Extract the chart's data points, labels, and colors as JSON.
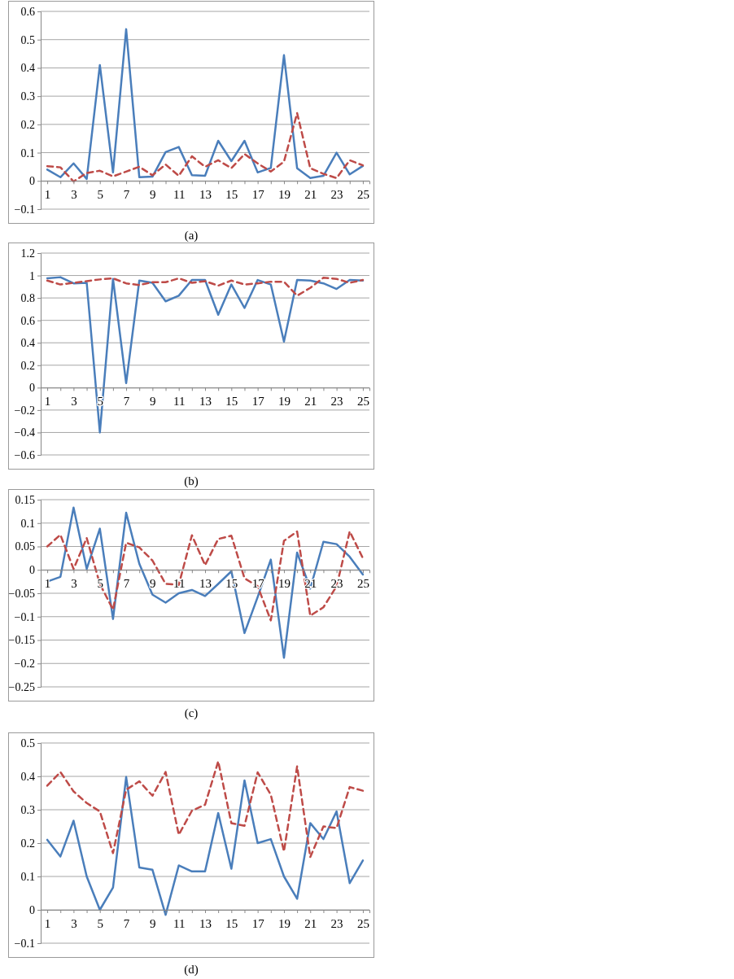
{
  "chart_data": [
    {
      "type": "line",
      "x": [
        1,
        2,
        3,
        4,
        5,
        6,
        7,
        8,
        9,
        10,
        11,
        12,
        13,
        14,
        15,
        16,
        17,
        18,
        19,
        20,
        21,
        22,
        23,
        24,
        25
      ],
      "xlim": [
        0.5,
        25.5
      ],
      "xticks": [
        1,
        {
          "value": 2,
          "label": null
        },
        3,
        {
          "value": 4,
          "label": null
        },
        5,
        {
          "value": 6,
          "label": null
        },
        7,
        {
          "value": 8,
          "label": null
        },
        9,
        {
          "value": 10,
          "label": null
        },
        11,
        {
          "value": 12,
          "label": null
        },
        13,
        {
          "value": 14,
          "label": null
        },
        15,
        {
          "value": 16,
          "label": null
        },
        17,
        {
          "value": 18,
          "label": null
        },
        19,
        {
          "value": 20,
          "label": null
        },
        21,
        {
          "value": 22,
          "label": null
        },
        23,
        {
          "value": 24,
          "label": null
        },
        25
      ],
      "ylim": [
        -0.1,
        0.6
      ],
      "yticks": [
        -0.1,
        0,
        0.1,
        0.2,
        0.3,
        0.4,
        0.5,
        0.6
      ],
      "grid": "y",
      "annotations": [
        "(a)"
      ],
      "series": [
        {
          "color": "#4a7ebb",
          "line_style": "solid",
          "values": [
            0.04,
            0.013,
            0.062,
            0.007,
            0.41,
            0.03,
            0.537,
            0.013,
            0.015,
            0.102,
            0.12,
            0.02,
            0.018,
            0.142,
            0.07,
            0.142,
            0.03,
            0.046,
            0.445,
            0.045,
            0.01,
            0.018,
            0.1,
            0.023,
            0.053
          ]
        },
        {
          "color": "#be4b48",
          "line_style": "dashed",
          "values": [
            0.052,
            0.048,
            -0.002,
            0.028,
            0.036,
            0.016,
            0.033,
            0.05,
            0.02,
            0.058,
            0.018,
            0.087,
            0.05,
            0.073,
            0.045,
            0.095,
            0.062,
            0.033,
            0.068,
            0.24,
            0.045,
            0.025,
            0.01,
            0.073,
            0.055
          ]
        }
      ]
    },
    {
      "type": "line",
      "x": [
        1,
        2,
        3,
        4,
        5,
        6,
        7,
        8,
        9,
        10,
        11,
        12,
        13,
        14,
        15,
        16,
        17,
        18,
        19,
        20,
        21,
        22,
        23,
        24,
        25
      ],
      "xlim": [
        0.5,
        25.5
      ],
      "xticks": [
        1,
        {
          "value": 2,
          "label": null
        },
        3,
        {
          "value": 4,
          "label": null
        },
        5,
        {
          "value": 6,
          "label": null
        },
        7,
        {
          "value": 8,
          "label": null
        },
        9,
        {
          "value": 10,
          "label": null
        },
        11,
        {
          "value": 12,
          "label": null
        },
        13,
        {
          "value": 14,
          "label": null
        },
        15,
        {
          "value": 16,
          "label": null
        },
        17,
        {
          "value": 18,
          "label": null
        },
        19,
        {
          "value": 20,
          "label": null
        },
        21,
        {
          "value": 22,
          "label": null
        },
        23,
        {
          "value": 24,
          "label": null
        },
        25
      ],
      "ylim": [
        -0.6,
        1.2
      ],
      "yticks": [
        -0.6,
        -0.4,
        -0.2,
        0,
        0.2,
        0.4,
        0.6,
        0.8,
        1,
        1.2
      ],
      "grid": "y",
      "annotations": [
        "(b)"
      ],
      "series": [
        {
          "color": "#4a7ebb",
          "line_style": "solid",
          "values": [
            0.975,
            0.985,
            0.93,
            0.935,
            -0.4,
            0.97,
            0.04,
            0.955,
            0.935,
            0.77,
            0.82,
            0.96,
            0.96,
            0.65,
            0.92,
            0.71,
            0.96,
            0.92,
            0.41,
            0.96,
            0.955,
            0.93,
            0.88,
            0.96,
            0.955
          ]
        },
        {
          "color": "#be4b48",
          "line_style": "dashed",
          "values": [
            0.955,
            0.92,
            0.935,
            0.95,
            0.965,
            0.975,
            0.93,
            0.915,
            0.94,
            0.94,
            0.975,
            0.935,
            0.95,
            0.91,
            0.955,
            0.92,
            0.93,
            0.945,
            0.945,
            0.82,
            0.89,
            0.98,
            0.97,
            0.935,
            0.96
          ]
        }
      ]
    },
    {
      "type": "line",
      "x": [
        1,
        2,
        3,
        4,
        5,
        6,
        7,
        8,
        9,
        10,
        11,
        12,
        13,
        14,
        15,
        16,
        17,
        18,
        19,
        20,
        21,
        22,
        23,
        24,
        25
      ],
      "xlim": [
        0.5,
        25.5
      ],
      "xticks": [
        1,
        {
          "value": 2,
          "label": null
        },
        3,
        {
          "value": 4,
          "label": null
        },
        5,
        {
          "value": 6,
          "label": null
        },
        7,
        {
          "value": 8,
          "label": null
        },
        9,
        {
          "value": 10,
          "label": null
        },
        11,
        {
          "value": 12,
          "label": null
        },
        13,
        {
          "value": 14,
          "label": null
        },
        15,
        {
          "value": 16,
          "label": null
        },
        17,
        {
          "value": 18,
          "label": null
        },
        19,
        {
          "value": 20,
          "label": null
        },
        21,
        {
          "value": 22,
          "label": null
        },
        23,
        {
          "value": 24,
          "label": null
        },
        25
      ],
      "ylim": [
        -0.25,
        0.15
      ],
      "yticks": [
        -0.25,
        -0.2,
        -0.15,
        -0.1,
        -0.05,
        0,
        0.05,
        0.1,
        0.15
      ],
      "grid": "y",
      "annotations": [
        "(c)"
      ],
      "series": [
        {
          "color": "#4a7ebb",
          "line_style": "solid",
          "values": [
            -0.025,
            -0.015,
            0.133,
            0.002,
            0.088,
            -0.105,
            0.122,
            0.013,
            -0.053,
            -0.07,
            -0.05,
            -0.043,
            -0.056,
            -0.03,
            -0.003,
            -0.135,
            -0.058,
            0.022,
            -0.188,
            0.037,
            -0.04,
            0.06,
            0.055,
            0.028,
            -0.01
          ]
        },
        {
          "color": "#be4b48",
          "line_style": "dashed",
          "values": [
            0.05,
            0.075,
            0.002,
            0.068,
            -0.03,
            -0.085,
            0.058,
            0.048,
            0.02,
            -0.03,
            -0.032,
            0.074,
            0.01,
            0.066,
            0.073,
            -0.018,
            -0.035,
            -0.108,
            0.062,
            0.082,
            -0.098,
            -0.08,
            -0.035,
            0.082,
            0.025
          ]
        }
      ]
    },
    {
      "type": "line",
      "x": [
        1,
        2,
        3,
        4,
        5,
        6,
        7,
        8,
        9,
        10,
        11,
        12,
        13,
        14,
        15,
        16,
        17,
        18,
        19,
        20,
        21,
        22,
        23,
        24,
        25
      ],
      "xlim": [
        0.5,
        25.5
      ],
      "xticks": [
        1,
        {
          "value": 2,
          "label": null
        },
        3,
        {
          "value": 4,
          "label": null
        },
        5,
        {
          "value": 6,
          "label": null
        },
        7,
        {
          "value": 8,
          "label": null
        },
        9,
        {
          "value": 10,
          "label": null
        },
        11,
        {
          "value": 12,
          "label": null
        },
        13,
        {
          "value": 14,
          "label": null
        },
        15,
        {
          "value": 16,
          "label": null
        },
        17,
        {
          "value": 18,
          "label": null
        },
        19,
        {
          "value": 20,
          "label": null
        },
        21,
        {
          "value": 22,
          "label": null
        },
        23,
        {
          "value": 24,
          "label": null
        },
        25
      ],
      "ylim": [
        -0.1,
        0.5
      ],
      "yticks": [
        -0.1,
        0,
        0.1,
        0.2,
        0.3,
        0.4,
        0.5
      ],
      "grid": "y",
      "annotations": [
        "(d)"
      ],
      "series": [
        {
          "color": "#4a7ebb",
          "line_style": "solid",
          "values": [
            0.21,
            0.16,
            0.267,
            0.1,
            0,
            0.067,
            0.398,
            0.127,
            0.12,
            -0.015,
            0.133,
            0.115,
            0.115,
            0.29,
            0.123,
            0.388,
            0.2,
            0.212,
            0.1,
            0.033,
            0.26,
            0.212,
            0.295,
            0.08,
            0.148
          ]
        },
        {
          "color": "#be4b48",
          "line_style": "dashed",
          "values": [
            0.372,
            0.413,
            0.355,
            0.32,
            0.295,
            0.17,
            0.36,
            0.385,
            0.342,
            0.413,
            0.225,
            0.297,
            0.315,
            0.445,
            0.26,
            0.252,
            0.412,
            0.345,
            0.175,
            0.43,
            0.158,
            0.25,
            0.245,
            0.368,
            0.357
          ]
        }
      ]
    }
  ]
}
